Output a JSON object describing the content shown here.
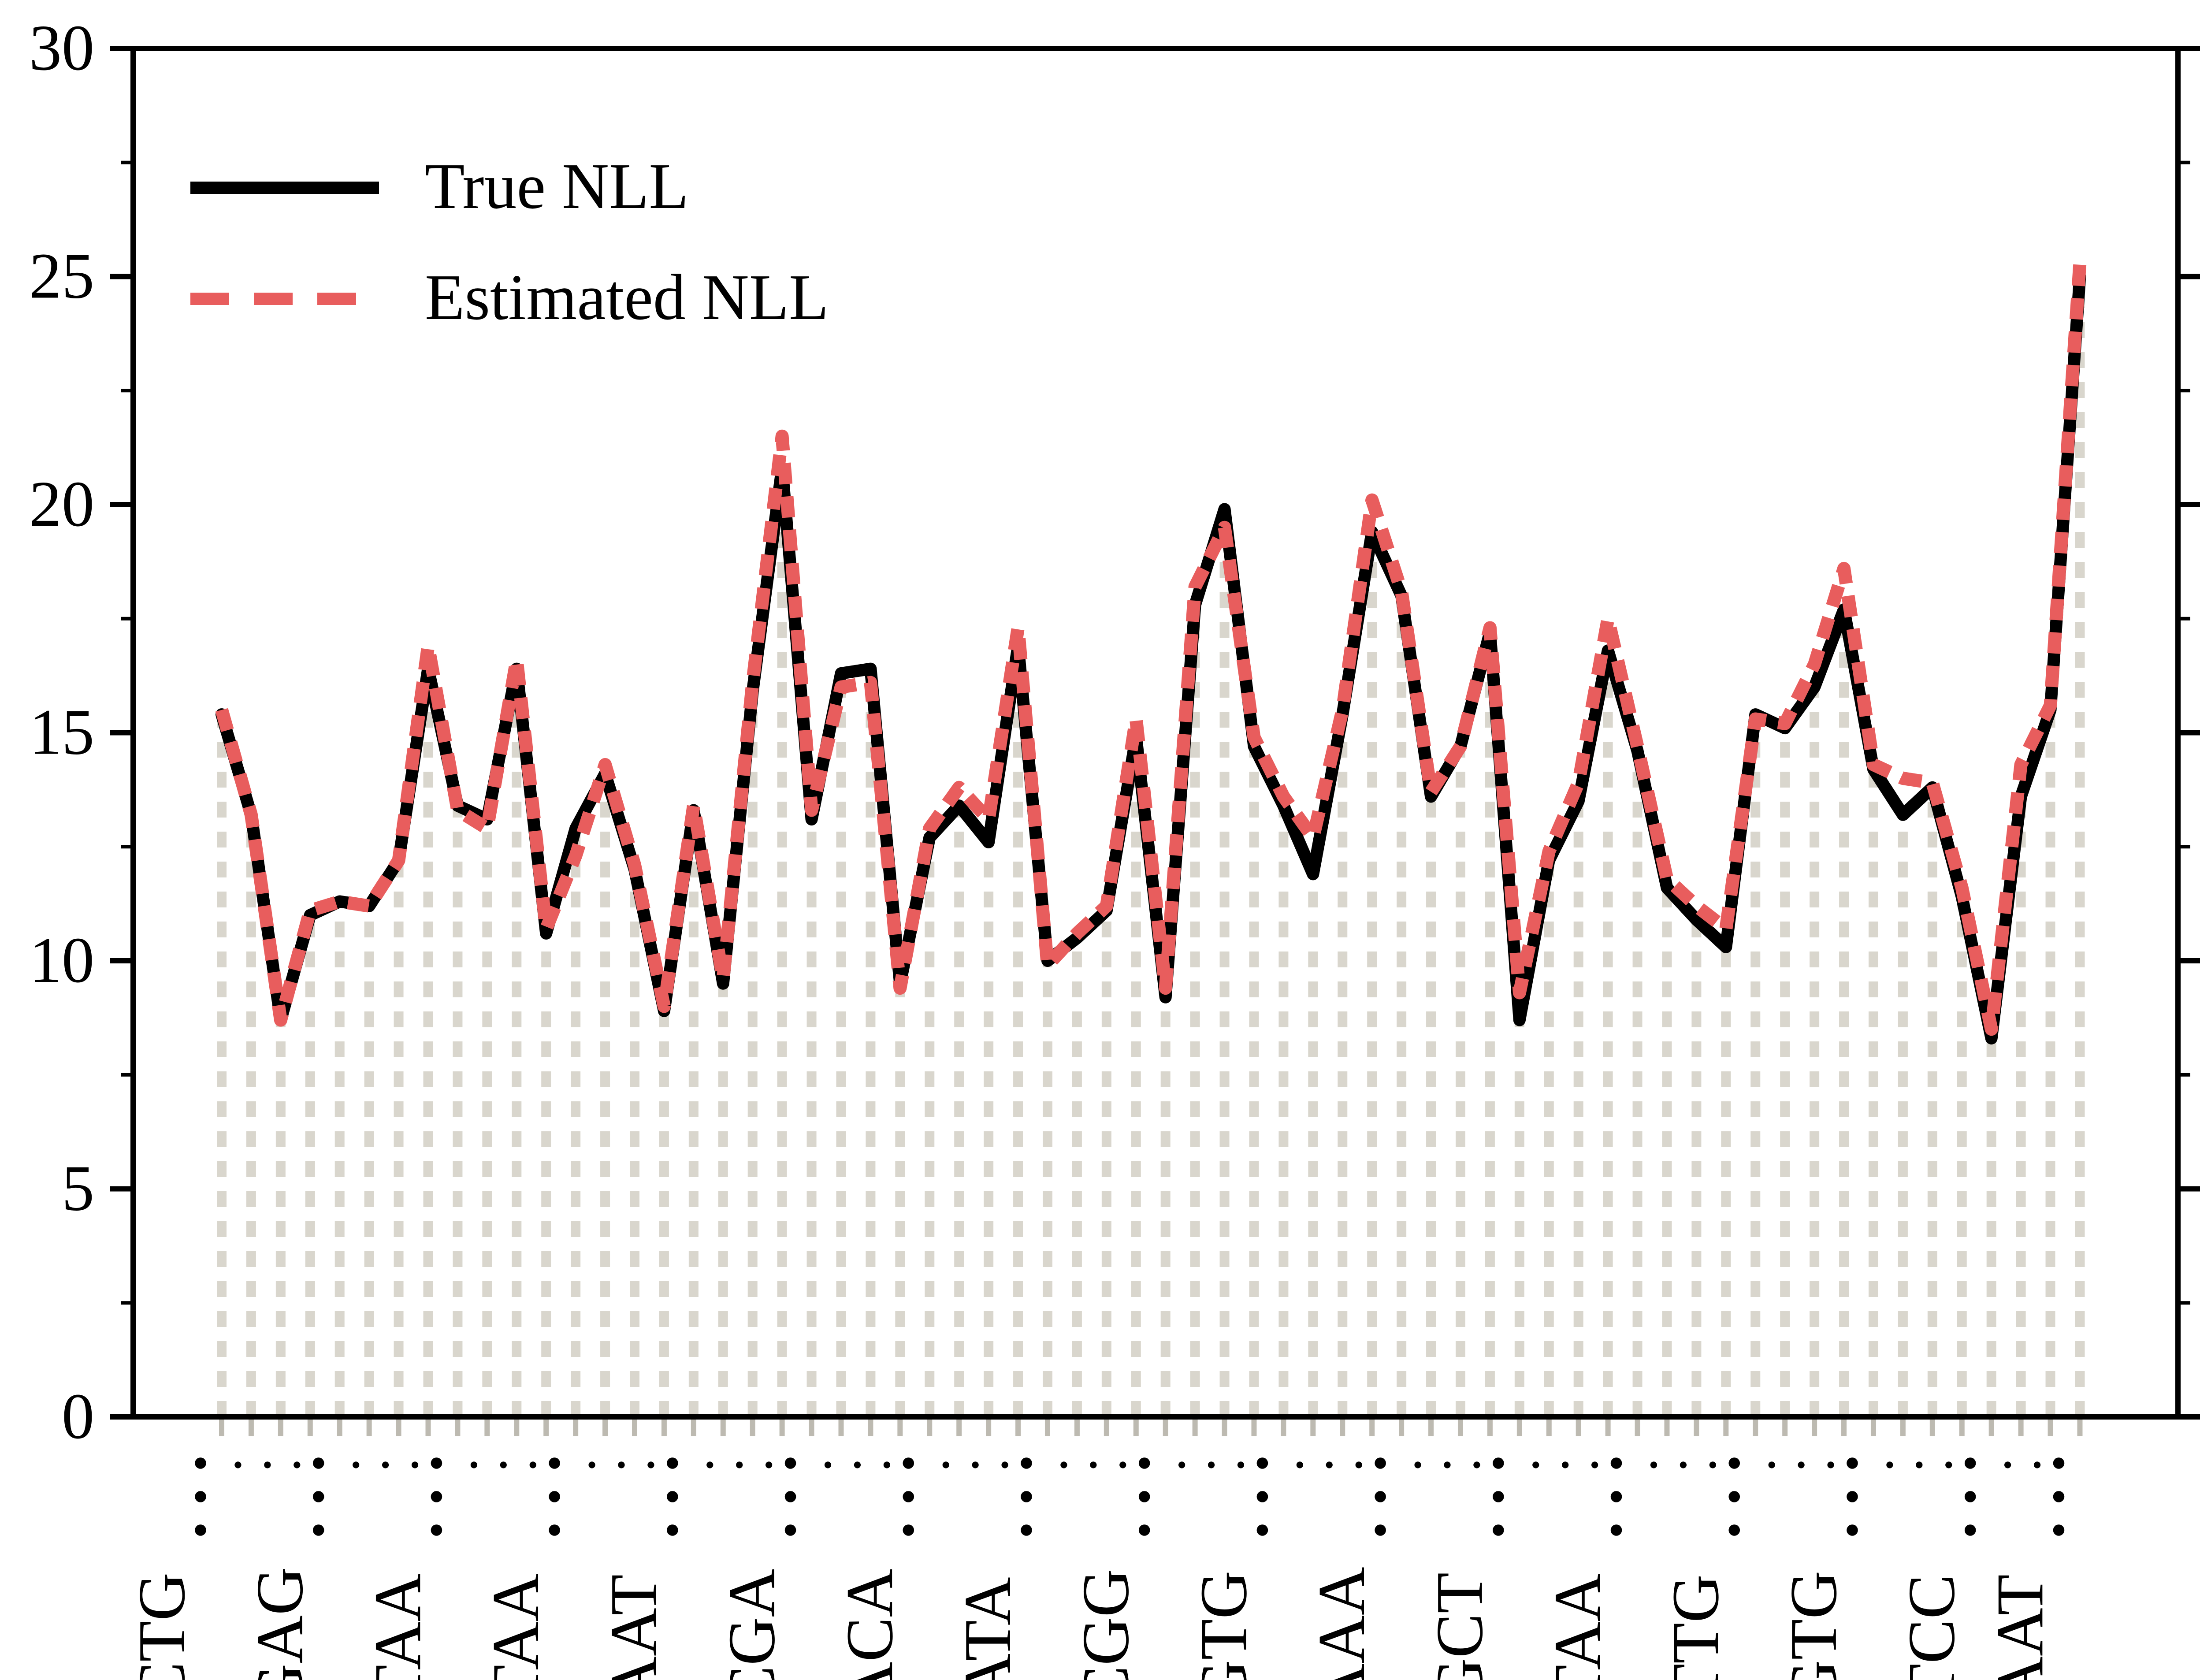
{
  "figure": {
    "background": "#ffffff",
    "axis_color": "#000000",
    "stem_color": "#d9d6cd",
    "x_tick_color": "#bdbab1"
  },
  "legend": {
    "position": "upper left",
    "items": [
      {
        "label": "True NLL",
        "style": "solid",
        "color": "#000000"
      },
      {
        "label": "Estimated NLL",
        "style": "dashed",
        "color": "#e85d5d"
      }
    ]
  },
  "chart_data": {
    "type": "line",
    "title": "",
    "xlabel": "",
    "ylabel": "",
    "ylim": [
      0,
      30
    ],
    "y_ticks": [
      0,
      5,
      10,
      15,
      20,
      25,
      30
    ],
    "y_minor_step": 2.5,
    "grid": false,
    "stems": true,
    "x_tick_count": 64,
    "x_labeled_indices": [
      0,
      4,
      8,
      12,
      16,
      20,
      24,
      28,
      32,
      36,
      40,
      44,
      48,
      52,
      56,
      60,
      63
    ],
    "x_labels": [
      "CTG",
      "GAG",
      "TAA",
      "TAA",
      "AAT",
      "CGA",
      "ACA",
      "ATA",
      "CGG",
      "GTG",
      "AAA",
      "GCT",
      "TAA",
      "TTG",
      "GTG",
      "TCC",
      "AAT"
    ],
    "x_unlabeled_marker": ".",
    "x_labeled_marker": "⋮",
    "series": [
      {
        "name": "True NLL",
        "color": "#000000",
        "style": "solid",
        "values": [
          15.4,
          13.2,
          8.7,
          11.0,
          11.3,
          11.2,
          12.2,
          16.4,
          13.4,
          13.1,
          16.4,
          10.6,
          12.9,
          14.1,
          12.0,
          8.9,
          13.3,
          9.5,
          15.9,
          20.8,
          13.1,
          16.3,
          16.4,
          9.5,
          12.7,
          13.4,
          12.6,
          16.9,
          10.0,
          10.5,
          11.1,
          14.9,
          9.2,
          17.8,
          19.9,
          14.7,
          13.4,
          11.9,
          15.4,
          19.4,
          18.0,
          13.6,
          14.7,
          17.2,
          8.7,
          12.2,
          13.5,
          16.8,
          14.6,
          11.6,
          10.9,
          10.3,
          15.4,
          15.1,
          16.0,
          17.7,
          14.2,
          13.2,
          13.8,
          11.4,
          8.3,
          13.6,
          15.5,
          25.0
        ]
      },
      {
        "name": "Estimated NLL",
        "color": "#e85d5d",
        "style": "dashed",
        "values": [
          15.5,
          13.2,
          8.7,
          11.1,
          11.3,
          11.2,
          12.2,
          16.9,
          13.3,
          12.9,
          16.6,
          10.7,
          12.3,
          14.3,
          12.1,
          9.0,
          13.4,
          9.6,
          16.1,
          21.5,
          13.3,
          16.0,
          16.1,
          9.4,
          12.9,
          13.8,
          13.1,
          17.3,
          9.9,
          10.6,
          11.2,
          15.3,
          9.4,
          18.2,
          19.5,
          14.9,
          13.6,
          12.7,
          15.5,
          20.1,
          18.1,
          13.7,
          14.7,
          17.3,
          9.3,
          12.4,
          13.9,
          17.5,
          14.7,
          11.8,
          11.2,
          10.7,
          15.3,
          15.2,
          16.5,
          18.6,
          14.3,
          14.0,
          13.9,
          11.6,
          8.5,
          14.3,
          15.6,
          25.3
        ]
      }
    ],
    "legend_position": "upper left"
  }
}
